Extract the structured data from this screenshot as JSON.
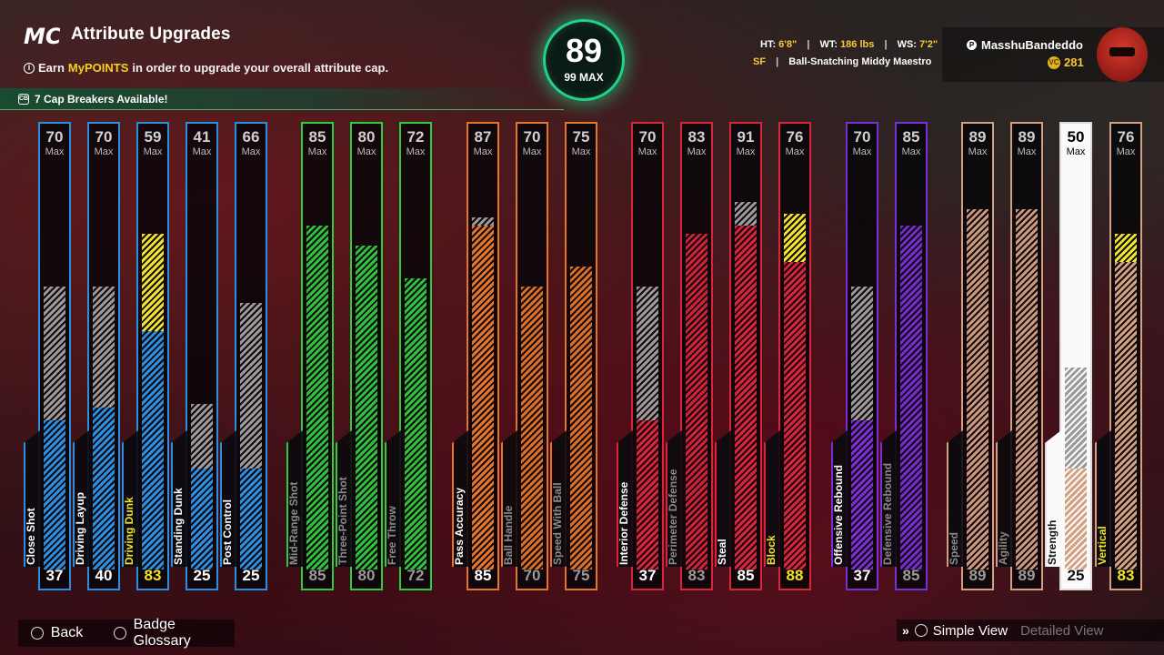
{
  "header": {
    "logo": "MC",
    "title": "Attribute Upgrades",
    "subtitle_prefix": "Earn",
    "subtitle_highlight": "MyPOINTS",
    "subtitle_suffix": "in order to upgrade your overall attribute cap."
  },
  "cap_breakers": {
    "text": "7 Cap Breakers Available!"
  },
  "overall": {
    "value": "89",
    "max_label": "99 MAX"
  },
  "physicals": {
    "ht_label": "HT:",
    "ht_value": "6'8\"",
    "wt_label": "WT:",
    "wt_value": "186 lbs",
    "ws_label": "WS:",
    "ws_value": "7'2\"",
    "position": "SF",
    "archetype": "Ball-Snatching Middy Maestro"
  },
  "player": {
    "name": "MasshuBandeddo",
    "coins": "281"
  },
  "colors": {
    "blue": "#2a8fe0",
    "green": "#2ecc40",
    "orange": "#e5752a",
    "red": "#d9243c",
    "purple": "#7a2ed6",
    "tan": "#d4a082",
    "yellow": "#f0e42a",
    "gray": "#9a9a9a"
  },
  "attributes": [
    {
      "name": "Close Shot",
      "current": "37",
      "cap": "70",
      "group": "blue",
      "cur_frac": 0.37,
      "cap_frac": 0.7
    },
    {
      "name": "Driving Layup",
      "current": "40",
      "cap": "70",
      "group": "blue",
      "cur_frac": 0.4,
      "cap_frac": 0.7
    },
    {
      "name": "Driving Dunk",
      "current": "83",
      "cap": "59",
      "group": "blue",
      "cur_frac": 0.59,
      "cap_frac": 0.59,
      "bonus_frac": 0.83,
      "highlight": true
    },
    {
      "name": "Standing Dunk",
      "current": "25",
      "cap": "41",
      "group": "blue",
      "cur_frac": 0.25,
      "cap_frac": 0.41
    },
    {
      "name": "Post Control",
      "current": "25",
      "cap": "66",
      "group": "blue",
      "cur_frac": 0.25,
      "cap_frac": 0.66
    },
    {
      "name": "Mid-Range Shot",
      "current": "85",
      "cap": "85",
      "group": "green",
      "cur_frac": 0.85,
      "cap_frac": 0.85,
      "dim": true
    },
    {
      "name": "Three-Point Shot",
      "current": "80",
      "cap": "80",
      "group": "green",
      "cur_frac": 0.8,
      "cap_frac": 0.8,
      "dim": true
    },
    {
      "name": "Free Throw",
      "current": "72",
      "cap": "72",
      "group": "green",
      "cur_frac": 0.72,
      "cap_frac": 0.72,
      "dim": true
    },
    {
      "name": "Pass Accuracy",
      "current": "85",
      "cap": "87",
      "group": "orange",
      "cur_frac": 0.85,
      "cap_frac": 0.87
    },
    {
      "name": "Ball Handle",
      "current": "70",
      "cap": "70",
      "group": "orange",
      "cur_frac": 0.7,
      "cap_frac": 0.7,
      "dim": true
    },
    {
      "name": "Speed With Ball",
      "current": "75",
      "cap": "75",
      "group": "orange",
      "cur_frac": 0.75,
      "cap_frac": 0.75,
      "dim": true
    },
    {
      "name": "Interior Defense",
      "current": "37",
      "cap": "70",
      "group": "red",
      "cur_frac": 0.37,
      "cap_frac": 0.7
    },
    {
      "name": "Perimeter Defense",
      "current": "83",
      "cap": "83",
      "group": "red",
      "cur_frac": 0.83,
      "cap_frac": 0.83,
      "dim": true
    },
    {
      "name": "Steal",
      "current": "85",
      "cap": "91",
      "group": "red",
      "cur_frac": 0.85,
      "cap_frac": 0.91
    },
    {
      "name": "Block",
      "current": "88",
      "cap": "76",
      "group": "red",
      "cur_frac": 0.76,
      "cap_frac": 0.76,
      "bonus_frac": 0.88,
      "highlight": true
    },
    {
      "name": "Offensive Rebound",
      "current": "37",
      "cap": "70",
      "group": "purple",
      "cur_frac": 0.37,
      "cap_frac": 0.7
    },
    {
      "name": "Defensive Rebound",
      "current": "85",
      "cap": "85",
      "group": "purple",
      "cur_frac": 0.85,
      "cap_frac": 0.85,
      "dim": true
    },
    {
      "name": "Speed",
      "current": "89",
      "cap": "89",
      "group": "tan",
      "cur_frac": 0.89,
      "cap_frac": 0.89,
      "dim": true
    },
    {
      "name": "Agility",
      "current": "89",
      "cap": "89",
      "group": "tan",
      "cur_frac": 0.89,
      "cap_frac": 0.89,
      "dim": true
    },
    {
      "name": "Strength",
      "current": "25",
      "cap": "50",
      "group": "tan",
      "cur_frac": 0.25,
      "cap_frac": 0.5,
      "selected": true
    },
    {
      "name": "Vertical",
      "current": "83",
      "cap": "76",
      "group": "tan",
      "cur_frac": 0.76,
      "cap_frac": 0.76,
      "bonus_frac": 0.83,
      "highlight": true
    }
  ],
  "max_label": "Max",
  "footer": {
    "back": "Back",
    "badge_glossary": "Badge Glossary",
    "simple_view": "Simple View",
    "detailed_view": "Detailed View"
  }
}
